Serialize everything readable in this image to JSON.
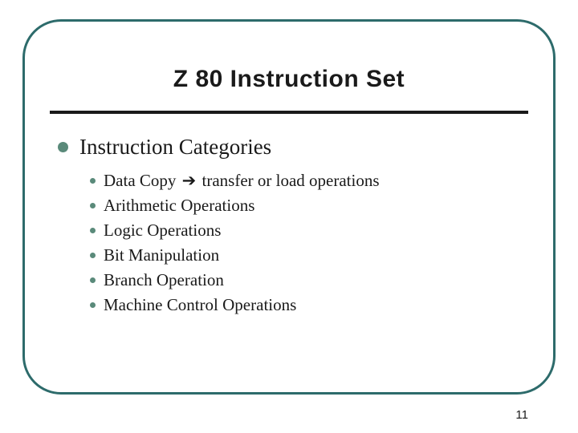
{
  "slide": {
    "title": "Z 80 Instruction Set",
    "title_fontsize": 30,
    "title_color": "#1a1a1a",
    "frame_border_color": "#2d6b6b",
    "frame_border_width": 3,
    "frame_border_radius": 48,
    "rule_color": "#1a1a1a",
    "background_color": "#ffffff"
  },
  "section": {
    "bullet_color": "#5a8a7a",
    "heading": "Instruction Categories",
    "heading_fontsize": 27,
    "sub_bullet_color": "#5a8a7a",
    "sub_fontsize": 21,
    "items": [
      {
        "prefix": "Data Copy ",
        "arrow": "➔",
        "suffix": " transfer or load operations"
      },
      {
        "prefix": "Arithmetic Operations",
        "arrow": "",
        "suffix": ""
      },
      {
        "prefix": "Logic Operations",
        "arrow": "",
        "suffix": ""
      },
      {
        "prefix": "Bit Manipulation",
        "arrow": "",
        "suffix": ""
      },
      {
        "prefix": "Branch Operation",
        "arrow": "",
        "suffix": ""
      },
      {
        "prefix": "Machine Control Operations",
        "arrow": "",
        "suffix": ""
      }
    ]
  },
  "page_number": "11",
  "page_number_fontsize": 15
}
